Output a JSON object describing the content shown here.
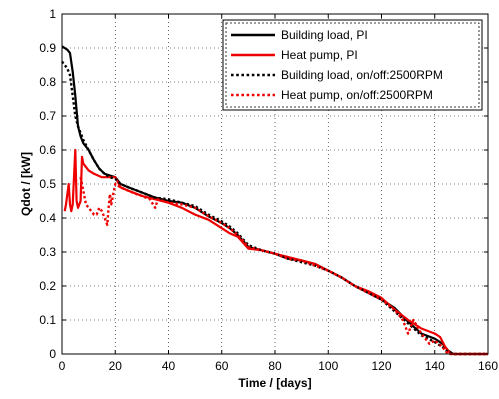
{
  "chart_data": {
    "type": "line",
    "xlabel": "Time / [days]",
    "ylabel": "Qdot / [kW]",
    "xlim": [
      0,
      160
    ],
    "ylim": [
      0,
      1
    ],
    "xticks": [
      0,
      20,
      40,
      60,
      80,
      100,
      120,
      140,
      160
    ],
    "xtick_labels": [
      "0",
      "20",
      "40",
      "60",
      "80",
      "100",
      "120",
      "140",
      "160"
    ],
    "yticks": [
      0,
      0.1,
      0.2,
      0.3,
      0.4,
      0.5,
      0.6,
      0.7,
      0.8,
      0.9,
      1
    ],
    "ytick_labels": [
      "0",
      "0.1",
      "0.2",
      "0.3",
      "0.4",
      "0.5",
      "0.6",
      "0.7",
      "0.8",
      "0.9",
      "1"
    ],
    "grid": true,
    "legend_position": "top-right",
    "series": [
      {
        "name": "Building load, PI",
        "color": "#000000",
        "dash": "solid",
        "points": [
          [
            0,
            0.905
          ],
          [
            2,
            0.895
          ],
          [
            3,
            0.885
          ],
          [
            4,
            0.83
          ],
          [
            5,
            0.76
          ],
          [
            6,
            0.67
          ],
          [
            7,
            0.64
          ],
          [
            8,
            0.62
          ],
          [
            10,
            0.6
          ],
          [
            12,
            0.57
          ],
          [
            14,
            0.545
          ],
          [
            16,
            0.53
          ],
          [
            18,
            0.525
          ],
          [
            20,
            0.52
          ],
          [
            22,
            0.5
          ],
          [
            25,
            0.49
          ],
          [
            30,
            0.475
          ],
          [
            35,
            0.46
          ],
          [
            40,
            0.45
          ],
          [
            45,
            0.445
          ],
          [
            50,
            0.43
          ],
          [
            55,
            0.405
          ],
          [
            60,
            0.385
          ],
          [
            63,
            0.37
          ],
          [
            66,
            0.35
          ],
          [
            70,
            0.315
          ],
          [
            75,
            0.305
          ],
          [
            80,
            0.295
          ],
          [
            85,
            0.28
          ],
          [
            90,
            0.275
          ],
          [
            95,
            0.265
          ],
          [
            100,
            0.245
          ],
          [
            105,
            0.225
          ],
          [
            110,
            0.2
          ],
          [
            115,
            0.18
          ],
          [
            120,
            0.16
          ],
          [
            125,
            0.135
          ],
          [
            130,
            0.095
          ],
          [
            135,
            0.06
          ],
          [
            140,
            0.045
          ],
          [
            143,
            0.03
          ],
          [
            145,
            0.01
          ],
          [
            147,
            0.0
          ],
          [
            160,
            0.0
          ]
        ]
      },
      {
        "name": "Heat pump, PI",
        "color": "#ee0000",
        "dash": "solid",
        "points": [
          [
            1,
            0.42
          ],
          [
            1.5,
            0.44
          ],
          [
            2.5,
            0.5
          ],
          [
            3,
            0.44
          ],
          [
            3.5,
            0.42
          ],
          [
            4,
            0.44
          ],
          [
            5,
            0.6
          ],
          [
            5.5,
            0.45
          ],
          [
            6,
            0.43
          ],
          [
            7,
            0.45
          ],
          [
            7.5,
            0.58
          ],
          [
            8,
            0.56
          ],
          [
            10,
            0.54
          ],
          [
            12,
            0.53
          ],
          [
            15,
            0.52
          ],
          [
            20,
            0.52
          ],
          [
            22,
            0.49
          ],
          [
            25,
            0.48
          ],
          [
            30,
            0.465
          ],
          [
            35,
            0.455
          ],
          [
            40,
            0.445
          ],
          [
            45,
            0.43
          ],
          [
            50,
            0.41
          ],
          [
            55,
            0.395
          ],
          [
            60,
            0.37
          ],
          [
            63,
            0.355
          ],
          [
            66,
            0.345
          ],
          [
            70,
            0.31
          ],
          [
            75,
            0.305
          ],
          [
            80,
            0.295
          ],
          [
            85,
            0.285
          ],
          [
            90,
            0.275
          ],
          [
            95,
            0.265
          ],
          [
            100,
            0.245
          ],
          [
            105,
            0.225
          ],
          [
            110,
            0.2
          ],
          [
            115,
            0.185
          ],
          [
            120,
            0.165
          ],
          [
            125,
            0.13
          ],
          [
            130,
            0.1
          ],
          [
            135,
            0.075
          ],
          [
            140,
            0.06
          ],
          [
            142,
            0.05
          ],
          [
            144,
            0.02
          ],
          [
            146,
            0.0
          ],
          [
            160,
            0.0
          ]
        ]
      },
      {
        "name": "Building load, on/off:2500RPM",
        "color": "#000000",
        "dash": "dotted",
        "points": [
          [
            0,
            0.86
          ],
          [
            1,
            0.85
          ],
          [
            2,
            0.84
          ],
          [
            3,
            0.82
          ],
          [
            4,
            0.76
          ],
          [
            5,
            0.7
          ],
          [
            6,
            0.67
          ],
          [
            8,
            0.63
          ],
          [
            10,
            0.6
          ],
          [
            12,
            0.57
          ],
          [
            14,
            0.545
          ],
          [
            16,
            0.53
          ],
          [
            18,
            0.52
          ],
          [
            20,
            0.515
          ],
          [
            22,
            0.5
          ],
          [
            25,
            0.49
          ],
          [
            30,
            0.475
          ],
          [
            35,
            0.46
          ],
          [
            40,
            0.455
          ],
          [
            45,
            0.445
          ],
          [
            50,
            0.435
          ],
          [
            55,
            0.41
          ],
          [
            60,
            0.39
          ],
          [
            63,
            0.375
          ],
          [
            66,
            0.355
          ],
          [
            70,
            0.32
          ],
          [
            75,
            0.305
          ],
          [
            80,
            0.295
          ],
          [
            85,
            0.28
          ],
          [
            90,
            0.27
          ],
          [
            95,
            0.26
          ],
          [
            100,
            0.245
          ],
          [
            105,
            0.225
          ],
          [
            110,
            0.2
          ],
          [
            115,
            0.18
          ],
          [
            120,
            0.16
          ],
          [
            125,
            0.125
          ],
          [
            130,
            0.09
          ],
          [
            135,
            0.055
          ],
          [
            140,
            0.035
          ],
          [
            143,
            0.02
          ],
          [
            145,
            0.005
          ],
          [
            147,
            0.0
          ],
          [
            160,
            0.0
          ]
        ]
      },
      {
        "name": "Heat pump, on/off:2500RPM",
        "color": "#ee0000",
        "dash": "dotted",
        "points": [
          [
            7,
            0.52
          ],
          [
            9,
            0.44
          ],
          [
            10,
            0.43
          ],
          [
            11,
            0.42
          ],
          [
            12,
            0.41
          ],
          [
            13,
            0.41
          ],
          [
            14,
            0.43
          ],
          [
            15,
            0.42
          ],
          [
            16,
            0.4
          ],
          [
            17,
            0.38
          ],
          [
            17.5,
            0.43
          ],
          [
            18,
            0.47
          ],
          [
            18.5,
            0.44
          ],
          [
            19,
            0.46
          ],
          [
            20,
            0.5
          ],
          [
            22,
            0.49
          ],
          [
            25,
            0.48
          ],
          [
            28,
            0.47
          ],
          [
            30,
            0.465
          ],
          [
            33,
            0.455
          ],
          [
            35,
            0.43
          ],
          [
            36,
            0.455
          ],
          [
            40,
            0.445
          ],
          [
            45,
            0.44
          ],
          [
            50,
            0.43
          ],
          [
            55,
            0.405
          ],
          [
            60,
            0.385
          ],
          [
            63,
            0.37
          ],
          [
            66,
            0.35
          ],
          [
            70,
            0.315
          ],
          [
            75,
            0.305
          ],
          [
            80,
            0.295
          ],
          [
            85,
            0.28
          ],
          [
            90,
            0.275
          ],
          [
            95,
            0.26
          ],
          [
            100,
            0.245
          ],
          [
            105,
            0.225
          ],
          [
            110,
            0.2
          ],
          [
            115,
            0.18
          ],
          [
            120,
            0.16
          ],
          [
            125,
            0.13
          ],
          [
            128,
            0.1
          ],
          [
            130,
            0.06
          ],
          [
            132,
            0.1
          ],
          [
            135,
            0.06
          ],
          [
            138,
            0.03
          ],
          [
            140,
            0.04
          ],
          [
            143,
            0.02
          ],
          [
            145,
            0.0
          ],
          [
            160,
            0.0
          ]
        ]
      }
    ]
  }
}
